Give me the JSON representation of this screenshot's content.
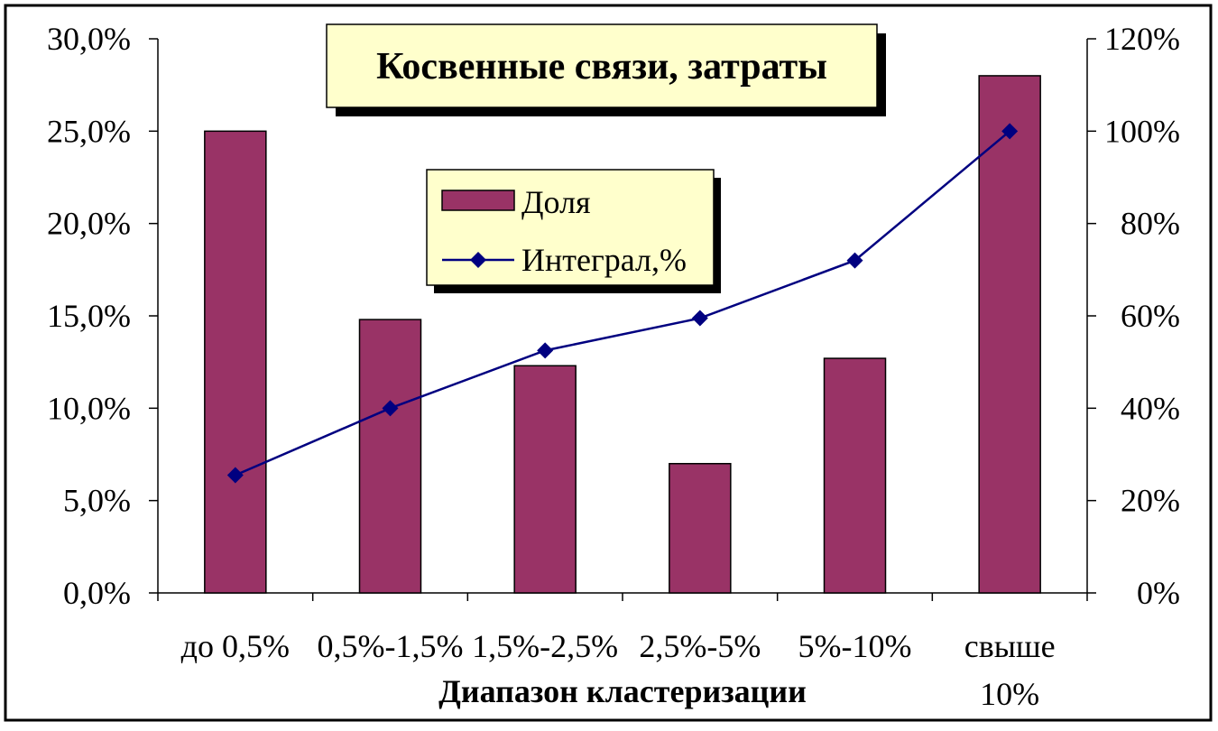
{
  "chart_data": {
    "type": "bar",
    "title": "Косвенные связи, затраты",
    "xlabel": "Диапазон кластеризации",
    "categories": [
      [
        "до 0,5%"
      ],
      [
        "0,5%-1,5%"
      ],
      [
        "1,5%-2,5%"
      ],
      [
        "2,5%-5%"
      ],
      [
        "5%-10%"
      ],
      [
        "свыше",
        "10%"
      ]
    ],
    "series": [
      {
        "name": "Доля",
        "type": "bar",
        "axis": "left",
        "values": [
          25.0,
          14.8,
          12.3,
          7.0,
          12.7,
          28.0
        ],
        "color": "#993366"
      },
      {
        "name": "Интеграл,%",
        "type": "line",
        "axis": "right",
        "values": [
          25.5,
          40,
          52.5,
          59.5,
          72,
          100
        ],
        "color": "#000080"
      }
    ],
    "y_left": {
      "min": 0,
      "max": 30,
      "ticks": [
        "0,0%",
        "5,0%",
        "10,0%",
        "15,0%",
        "20,0%",
        "25,0%",
        "30,0%"
      ]
    },
    "y_right": {
      "min": 0,
      "max": 120,
      "ticks": [
        "0%",
        "20%",
        "40%",
        "60%",
        "80%",
        "100%",
        "120%"
      ]
    },
    "grid": false,
    "legend_position": "center-top"
  }
}
